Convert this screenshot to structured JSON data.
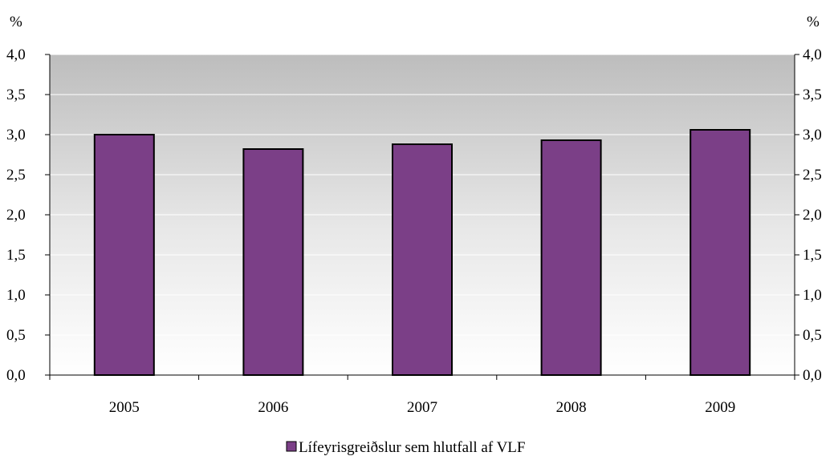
{
  "chart_data": {
    "type": "bar",
    "title": "",
    "xlabel": "",
    "ylabel": "%",
    "y2label": "%",
    "ylim": [
      0,
      4
    ],
    "ytick_values": [
      0,
      0.5,
      1,
      1.5,
      2,
      2.5,
      3,
      3.5,
      4
    ],
    "ytick_labels": [
      "0,0",
      "0,5",
      "1,0",
      "1,5",
      "2,0",
      "2,5",
      "3,0",
      "3,5",
      "4,0"
    ],
    "categories": [
      "2005",
      "2006",
      "2007",
      "2008",
      "2009"
    ],
    "series": [
      {
        "name": "Lífeyrisgreiðslur sem hlutfall af VLF",
        "values": [
          3.0,
          2.82,
          2.88,
          2.93,
          3.06
        ],
        "color": "#7B3F87"
      }
    ],
    "grid": true,
    "legend": "bottom-center",
    "plot_background": "gradient gray-to-white"
  }
}
